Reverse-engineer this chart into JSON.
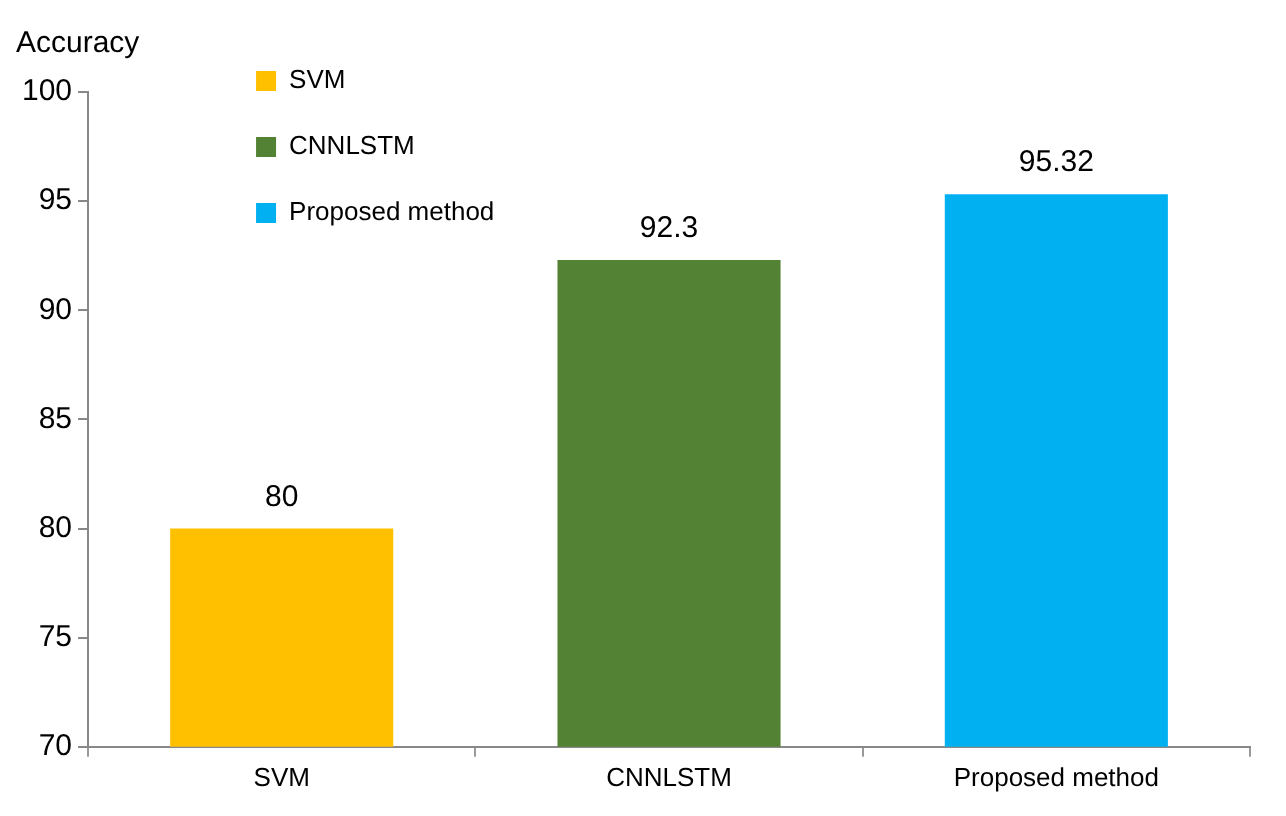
{
  "chart_data": {
    "type": "bar",
    "ylabel": "Accuracy",
    "categories": [
      "SVM",
      "CNNLSTM",
      "Proposed method"
    ],
    "series": [
      {
        "name": "SVM",
        "color": "#ffc000",
        "values": [
          80,
          null,
          null
        ]
      },
      {
        "name": "CNNLSTM",
        "color": "#548235",
        "values": [
          null,
          92.3,
          null
        ]
      },
      {
        "name": "Proposed method",
        "color": "#00b0f0",
        "values": [
          null,
          null,
          95.32
        ]
      }
    ],
    "ylim": [
      70,
      100
    ],
    "yticks": [
      70,
      75,
      80,
      85,
      90,
      95,
      100
    ],
    "data_labels": true,
    "grid": false,
    "legend": "top left"
  }
}
